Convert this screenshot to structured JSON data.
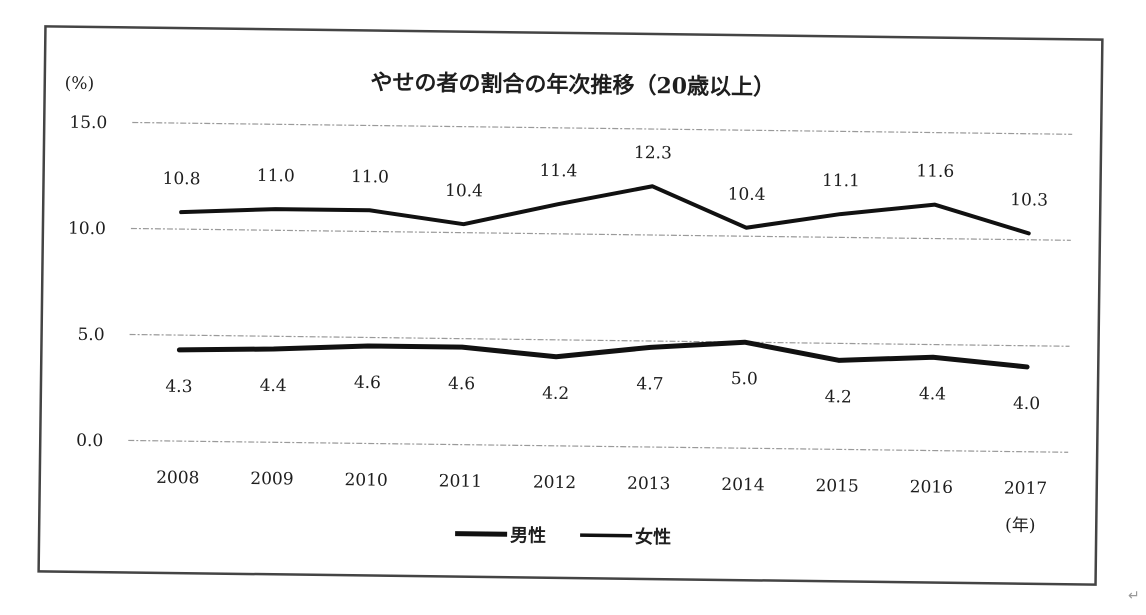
{
  "chart_data": {
    "type": "line",
    "title": "やせの者の割合の年次推移（20歳以上）",
    "ylabel": "(%)",
    "xlabel": "(年)",
    "ylim": [
      0,
      15
    ],
    "yticks": [
      "15.0",
      "10.0",
      "5.0",
      "0.0"
    ],
    "ytick_values": [
      15,
      10,
      5,
      0
    ],
    "grid": true,
    "legend_position": "bottom",
    "categories": [
      "2008",
      "2009",
      "2010",
      "2011",
      "2012",
      "2013",
      "2014",
      "2015",
      "2016",
      "2017"
    ],
    "series": [
      {
        "name": "男性",
        "values": [
          4.3,
          4.4,
          4.6,
          4.6,
          4.2,
          4.7,
          5.0,
          4.2,
          4.4,
          4.0
        ],
        "label_position": "below"
      },
      {
        "name": "女性",
        "values": [
          10.8,
          11.0,
          11.0,
          10.4,
          11.4,
          12.3,
          10.4,
          11.1,
          11.6,
          10.3
        ],
        "label_position": "above"
      }
    ]
  },
  "colors": {
    "line": "#111111",
    "grid": "#9a9a9a",
    "frame": "#444444",
    "text": "#1e1e1e"
  },
  "page_mark": "↵"
}
